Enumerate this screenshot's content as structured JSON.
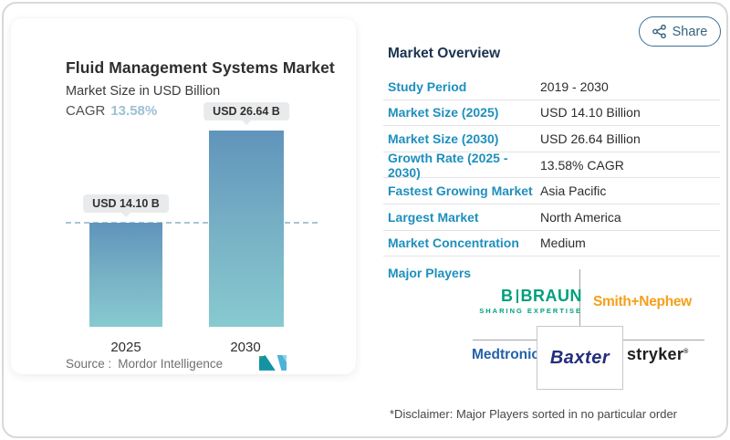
{
  "share": {
    "label": "Share"
  },
  "chart": {
    "title": "Fluid Management Systems Market",
    "subtitle": "Market Size in USD Billion",
    "cagr_label": "CAGR",
    "cagr_value": "13.58%",
    "source_label": "Source :",
    "source_value": "Mordor Intelligence"
  },
  "chart_data": {
    "type": "bar",
    "title": "Fluid Management Systems Market",
    "ylabel": "Market Size in USD Billion",
    "categories": [
      "2025",
      "2030"
    ],
    "values": [
      14.1,
      26.64
    ],
    "value_labels": [
      "USD 14.10 B",
      "USD 26.64 B"
    ],
    "annotations": [
      "CAGR 13.58%"
    ],
    "reference_line": 14.1,
    "ylim": [
      0,
      27
    ],
    "grid": false,
    "legend": "none",
    "bar_gradient_top": "#6094bb",
    "bar_gradient_bottom": "#87cad0",
    "reference_line_color": "#a9c4d7"
  },
  "overview": {
    "title": "Market Overview",
    "rows": [
      {
        "label": "Study Period",
        "value": "2019 - 2030"
      },
      {
        "label": "Market Size (2025)",
        "value": "USD 14.10 Billion"
      },
      {
        "label": "Market Size (2030)",
        "value": "USD 26.64 Billion"
      },
      {
        "label": "Growth Rate (2025 - 2030)",
        "value": "13.58% CAGR"
      },
      {
        "label": "Fastest Growing Market",
        "value": "Asia Pacific"
      },
      {
        "label": "Largest Market",
        "value": "North America"
      },
      {
        "label": "Market Concentration",
        "value": "Medium"
      }
    ],
    "major_players_label": "Major Players",
    "players": {
      "bbraun_b": "B",
      "bbraun_name": "BRAUN",
      "bbraun_tagline": "SHARING EXPERTISE",
      "smith_nephew": "Smith+Nephew",
      "medtronic": "Medtronic",
      "baxter": "Baxter",
      "stryker": "stryker"
    },
    "disclaimer": "*Disclaimer: Major Players sorted in no particular order"
  },
  "colors": {
    "accent_blue": "#1e8fbe",
    "header_navy": "#1b3350",
    "cagr_value_blue": "#9cc0d5",
    "share_teal": "#34627f",
    "bbraun_green": "#00a07c",
    "smith_orange": "#f5a01b",
    "medtronic_blue": "#2562a8",
    "baxter_navy": "#232e7c",
    "stryker_black": "#1f1f1f"
  }
}
